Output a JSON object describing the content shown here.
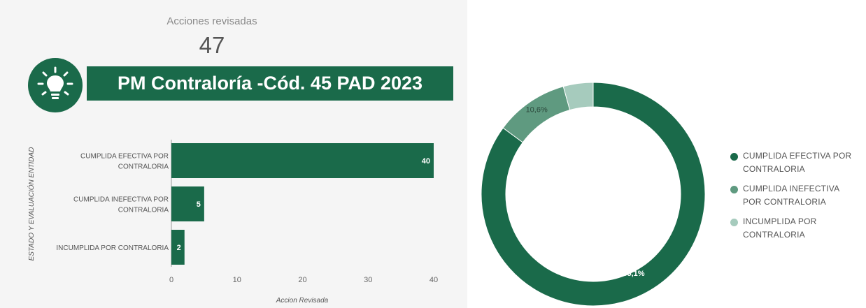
{
  "kpi": {
    "label": "Acciones revisadas",
    "value": "47"
  },
  "header": {
    "title": "PM Contraloría -Cód. 45 PAD 2023",
    "icon": "lightbulb-icon"
  },
  "colors": {
    "dark_green": "#1a6a4a",
    "mid_green": "#5f9a80",
    "light_green": "#a6cbbd"
  },
  "chart_data": [
    {
      "type": "bar",
      "orientation": "horizontal",
      "categories": [
        [
          "CUMPLIDA EFECTIVA POR",
          "CONTRALORIA"
        ],
        [
          "CUMPLIDA INEFECTIVA POR",
          "CONTRALORIA"
        ],
        [
          "INCUMPLIDA POR CONTRALORIA"
        ]
      ],
      "values": [
        40,
        5,
        2
      ],
      "value_labels": [
        "40",
        "5",
        "2"
      ],
      "xlabel": "Accion Revisada",
      "ylabel": "ESTADO Y EVALUACIÓN ENTIDAD",
      "xlim": [
        0,
        40
      ],
      "xticks": [
        0,
        10,
        20,
        30,
        40
      ],
      "grid": false,
      "color": "#1a6a4a"
    },
    {
      "type": "pie",
      "donut": true,
      "labels": [
        "CUMPLIDA EFECTIVA POR CONTRALORIA",
        "CUMPLIDA INEFECTIVA POR CONTRALORIA",
        "INCUMPLIDA POR CONTRALORIA"
      ],
      "legend_labels": [
        [
          "CUMPLIDA EFECTIVA POR",
          "CONTRALORIA"
        ],
        [
          "CUMPLIDA INEFECTIVA",
          "POR CONTRALORIA"
        ],
        [
          "INCUMPLIDA POR",
          "CONTRALORIA"
        ]
      ],
      "values": [
        85.1,
        10.6,
        4.3
      ],
      "slice_labels": [
        "85,1%",
        "10,6%",
        ""
      ],
      "colors": [
        "#1a6a4a",
        "#5f9a80",
        "#a6cbbd"
      ],
      "legend_position": "right"
    }
  ]
}
